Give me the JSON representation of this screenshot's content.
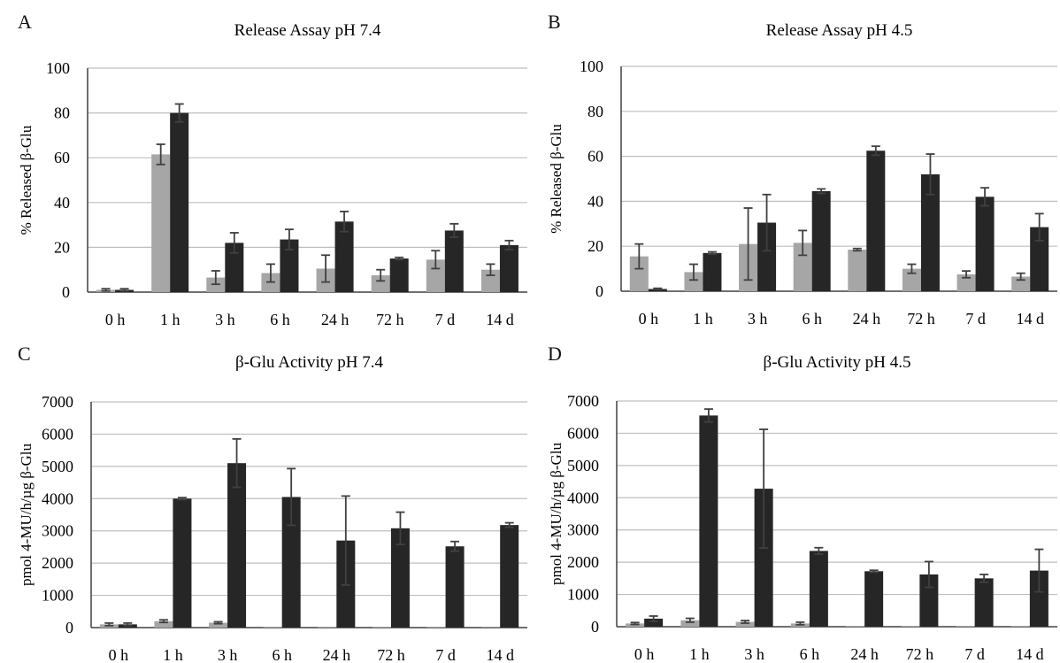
{
  "colors": {
    "series1": "#a6a6a6",
    "series2": "#262626",
    "grid": "#bfbfbf",
    "axis": "#404040",
    "errorbar": "#404040"
  },
  "chart_data": [
    {
      "id": "A",
      "panel_label": "A",
      "type": "bar",
      "title": "Release Assay pH 7.4",
      "xlabel": "",
      "ylabel": "% Released β-Glu",
      "categories": [
        "0 h",
        "1 h",
        "3 h",
        "6 h",
        "24 h",
        "72 h",
        "7 d",
        "14 d"
      ],
      "ylim": [
        0,
        100
      ],
      "yticks": [
        0,
        20,
        40,
        60,
        80,
        100
      ],
      "grid": true,
      "legend": "none",
      "series": [
        {
          "values": [
            1,
            61.5,
            6.5,
            8.5,
            10.5,
            7.5,
            14.5,
            10
          ],
          "errors": [
            0.5,
            4.5,
            3,
            4,
            6,
            2.5,
            4,
            2.5
          ]
        },
        {
          "values": [
            1,
            80,
            22,
            23.5,
            31.5,
            15,
            27.5,
            21
          ],
          "errors": [
            0.5,
            4,
            4.5,
            4.5,
            4.5,
            0.5,
            3,
            2
          ]
        }
      ]
    },
    {
      "id": "B",
      "panel_label": "B",
      "type": "bar",
      "title": "Release Assay pH 4.5",
      "xlabel": "",
      "ylabel": "% Released β-Glu",
      "categories": [
        "0 h",
        "1 h",
        "3 h",
        "6 h",
        "24 h",
        "72 h",
        "7 d",
        "14 d"
      ],
      "ylim": [
        0,
        100
      ],
      "yticks": [
        0,
        20,
        40,
        60,
        80,
        100
      ],
      "grid": true,
      "legend": "none",
      "series": [
        {
          "values": [
            15.5,
            8.5,
            21,
            21.5,
            18.5,
            10,
            7.5,
            6.5
          ],
          "errors": [
            5.5,
            3.5,
            16,
            5.5,
            0.5,
            2,
            1.5,
            1.5
          ]
        },
        {
          "values": [
            1,
            17,
            30.5,
            44.5,
            62.5,
            52,
            42,
            28.5
          ],
          "errors": [
            0.3,
            0.5,
            12.5,
            1,
            2,
            9,
            4,
            6
          ]
        }
      ]
    },
    {
      "id": "C",
      "panel_label": "C",
      "type": "bar",
      "title": "β-Glu Activity pH 7.4",
      "xlabel": "",
      "ylabel": "pmol 4-MU/h/µg β-Glu",
      "categories": [
        "0 h",
        "1 h",
        "3 h",
        "6 h",
        "24 h",
        "72 h",
        "7 d",
        "14 d"
      ],
      "ylim": [
        0,
        7000
      ],
      "yticks": [
        0,
        1000,
        2000,
        3000,
        4000,
        5000,
        6000,
        7000
      ],
      "grid": true,
      "legend": "none",
      "series": [
        {
          "values": [
            100,
            200,
            150,
            20,
            20,
            20,
            20,
            10
          ],
          "errors": [
            40,
            40,
            30,
            0,
            0,
            0,
            0,
            0
          ]
        },
        {
          "values": [
            100,
            4000,
            5100,
            4050,
            2700,
            3080,
            2520,
            3180
          ],
          "errors": [
            40,
            30,
            750,
            880,
            1380,
            500,
            150,
            70
          ]
        }
      ]
    },
    {
      "id": "D",
      "panel_label": "D",
      "type": "bar",
      "title": "β-Glu Activity pH 4.5",
      "xlabel": "",
      "ylabel": "pmol 4-MU/h/µg β-Glu",
      "categories": [
        "0 h",
        "1 h",
        "3 h",
        "6 h",
        "24 h",
        "72 h",
        "7 d",
        "14 d"
      ],
      "ylim": [
        0,
        7000
      ],
      "yticks": [
        0,
        1000,
        2000,
        3000,
        4000,
        5000,
        6000,
        7000
      ],
      "grid": true,
      "legend": "none",
      "series": [
        {
          "values": [
            100,
            200,
            150,
            100,
            20,
            20,
            20,
            20
          ],
          "errors": [
            30,
            60,
            40,
            40,
            0,
            0,
            0,
            0
          ]
        },
        {
          "values": [
            250,
            6550,
            4280,
            2350,
            1720,
            1620,
            1500,
            1740
          ],
          "errors": [
            80,
            200,
            1840,
            100,
            30,
            400,
            120,
            660
          ]
        }
      ]
    }
  ]
}
